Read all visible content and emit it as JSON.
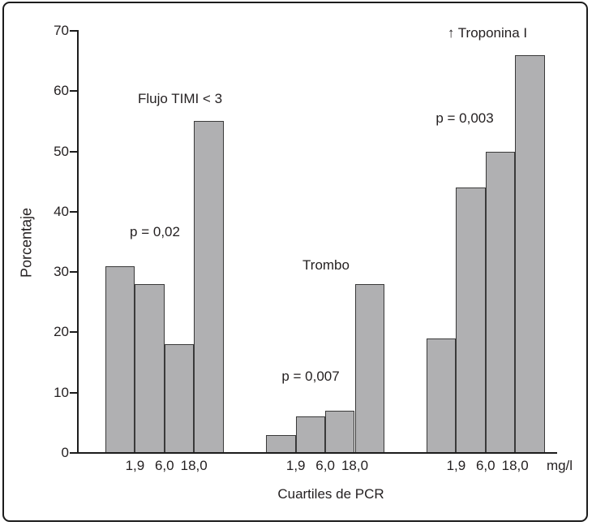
{
  "chart_data": {
    "type": "bar",
    "ylabel": "Porcentaje",
    "xlabel": "Cuartiles de PCR",
    "x_unit": "mg/l",
    "ylim": [
      0,
      70
    ],
    "yticks": [
      0,
      10,
      20,
      30,
      40,
      50,
      60,
      70
    ],
    "grid": "off",
    "legend": "none",
    "bars_per_group": 4,
    "quartile_boundary_labels": [
      "1,9",
      "6,0",
      "18,0"
    ],
    "bar_fill_color": "#b0b0b2",
    "bar_border_color": "#3a3a3a",
    "axis_color": "#1c1c1c",
    "groups": [
      {
        "title": "Flujo TIMI < 3",
        "p_label": "p = 0,02",
        "values": [
          31,
          28,
          18,
          55
        ]
      },
      {
        "title": "Trombo",
        "p_label": "p = 0,007",
        "values": [
          3,
          6,
          7,
          28
        ]
      },
      {
        "title": "↑ Troponina I",
        "p_label": "p = 0,003",
        "values": [
          19,
          44,
          50,
          66
        ]
      }
    ]
  }
}
